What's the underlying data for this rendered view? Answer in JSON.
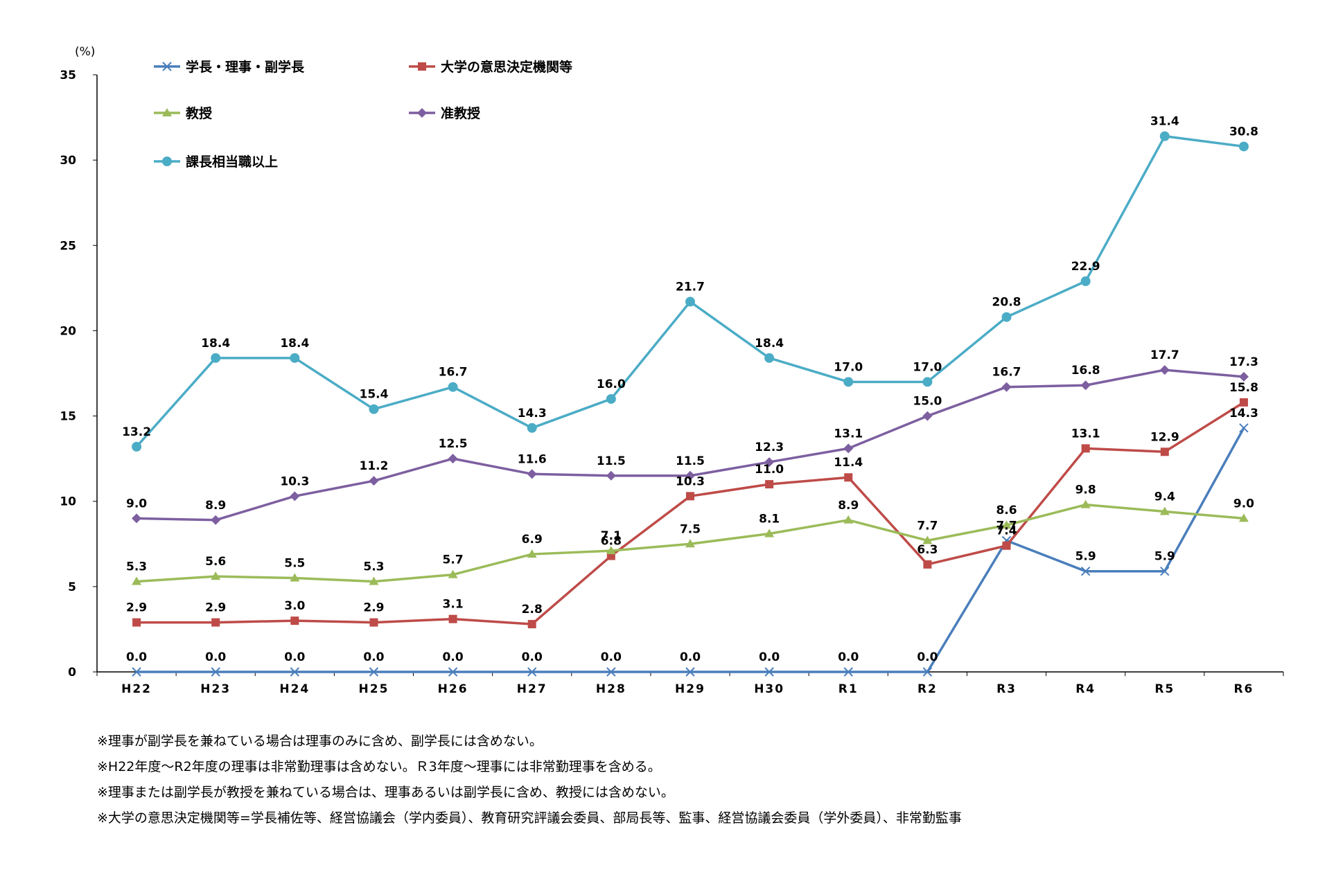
{
  "chart_data": {
    "type": "line",
    "unit_label": "(%)",
    "categories": [
      "H22",
      "H23",
      "H24",
      "H25",
      "H26",
      "H27",
      "H28",
      "H29",
      "H30",
      "R1",
      "R2",
      "R3",
      "R4",
      "R5",
      "R6"
    ],
    "ylim": [
      0,
      35
    ],
    "yticks": [
      0,
      5,
      10,
      15,
      20,
      25,
      30,
      35
    ],
    "series": [
      {
        "name": "学長・理事・副学長",
        "color": "#4a7ebb",
        "marker": "x",
        "values": [
          0.0,
          0.0,
          0.0,
          0.0,
          0.0,
          0.0,
          0.0,
          0.0,
          0.0,
          0.0,
          0.0,
          7.7,
          5.9,
          5.9,
          14.3
        ],
        "labels": [
          "0.0",
          "0.0",
          "0.0",
          "0.0",
          "0.0",
          "0.0",
          "0.0",
          "0.0",
          "0.0",
          "0.0",
          "0.0",
          "7.7",
          "5.9",
          "5.9",
          "14.3"
        ]
      },
      {
        "name": "大学の意思決定機関等",
        "color": "#be4b48",
        "marker": "square",
        "values": [
          2.9,
          2.9,
          3.0,
          2.9,
          3.1,
          2.8,
          6.8,
          10.3,
          11.0,
          11.4,
          6.3,
          7.4,
          13.1,
          12.9,
          15.8
        ],
        "labels": [
          "2.9",
          "2.9",
          "3.0",
          "2.9",
          "3.1",
          "2.8",
          "6.8",
          "10.3",
          "11.0",
          "11.4",
          "6.3",
          "7.4",
          "13.1",
          "12.9",
          "15.8"
        ]
      },
      {
        "name": "教授",
        "color": "#9bbb59",
        "marker": "triangle",
        "values": [
          5.3,
          5.6,
          5.5,
          5.3,
          5.7,
          6.9,
          7.1,
          7.5,
          8.1,
          8.9,
          7.7,
          8.6,
          9.8,
          9.4,
          9.0
        ],
        "labels": [
          "5.3",
          "5.6",
          "5.5",
          "5.3",
          "5.7",
          "6.9",
          "7.1",
          "7.5",
          "8.1",
          "8.9",
          "7.7",
          "8.6",
          "9.8",
          "9.4",
          "9.0"
        ]
      },
      {
        "name": "准教授",
        "color": "#7d5fa0",
        "marker": "diamond",
        "values": [
          9.0,
          8.9,
          10.3,
          11.2,
          12.5,
          11.6,
          11.5,
          11.5,
          12.3,
          13.1,
          15.0,
          16.7,
          16.8,
          17.7,
          17.3
        ],
        "labels": [
          "9.0",
          "8.9",
          "10.3",
          "11.2",
          "12.5",
          "11.6",
          "11.5",
          "11.5",
          "12.3",
          "13.1",
          "15.0",
          "16.7",
          "16.8",
          "17.7",
          "17.3"
        ]
      },
      {
        "name": "課長相当職以上",
        "color": "#4bacc6",
        "marker": "circle",
        "values": [
          13.2,
          18.4,
          18.4,
          15.4,
          16.7,
          14.3,
          16.0,
          21.7,
          18.4,
          17.0,
          17.0,
          20.8,
          22.9,
          31.4,
          30.8
        ],
        "labels": [
          "13.2",
          "18.4",
          "18.4",
          "15.4",
          "16.7",
          "14.3",
          "16.0",
          "21.7",
          "18.4",
          "17.0",
          "17.0",
          "20.8",
          "22.9",
          "31.4",
          "30.8"
        ]
      }
    ]
  },
  "notes": [
    "※理事が副学長を兼ねている場合は理事のみに含め、副学長には含めない。",
    "※H22年度～R2年度の理事は非常勤理事は含めない。Ｒ3年度～理事には非常勤理事を含める。",
    "※理事または副学長が教授を兼ねている場合は、理事あるいは副学長に含め、教授には含めない。",
    "※大学の意思決定機関等=学長補佐等、経営協議会（学内委員）、教育研究評議会委員、部局長等、監事、経営協議会委員（学外委員）、非常勤監事"
  ]
}
